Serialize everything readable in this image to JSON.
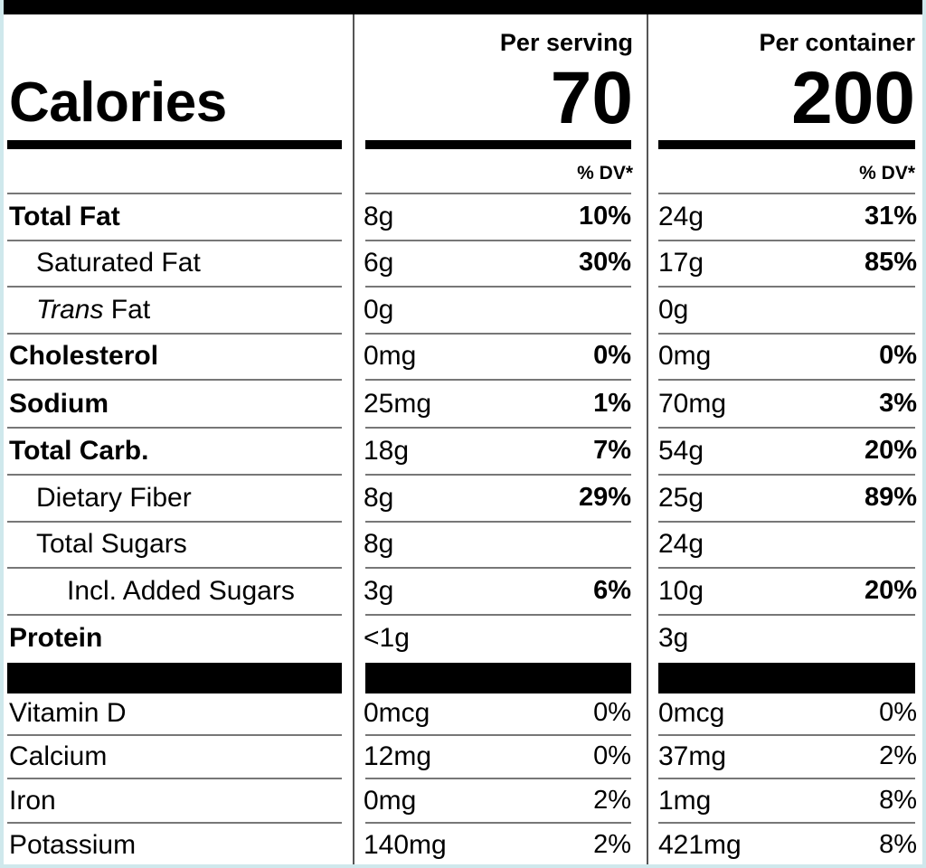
{
  "header": {
    "calories_label": "Calories",
    "per_serving_label": "Per serving",
    "per_container_label": "Per container",
    "per_serving_calories": "70",
    "per_container_calories": "200",
    "dv_label": "% DV*"
  },
  "nutrients": [
    {
      "name": "Total Fat",
      "serving_amount": "8g",
      "serving_dv": "10%",
      "container_amount": "24g",
      "container_dv": "31%"
    },
    {
      "name": "Saturated Fat",
      "serving_amount": "6g",
      "serving_dv": "30%",
      "container_amount": "17g",
      "container_dv": "85%"
    },
    {
      "name_italic": "Trans",
      "name_rest": " Fat",
      "serving_amount": "0g",
      "serving_dv": "",
      "container_amount": "0g",
      "container_dv": ""
    },
    {
      "name": "Cholesterol",
      "serving_amount": "0mg",
      "serving_dv": "0%",
      "container_amount": "0mg",
      "container_dv": "0%"
    },
    {
      "name": "Sodium",
      "serving_amount": "25mg",
      "serving_dv": "1%",
      "container_amount": "70mg",
      "container_dv": "3%"
    },
    {
      "name": "Total Carb.",
      "serving_amount": "18g",
      "serving_dv": "7%",
      "container_amount": "54g",
      "container_dv": "20%"
    },
    {
      "name": "Dietary Fiber",
      "serving_amount": "8g",
      "serving_dv": "29%",
      "container_amount": "25g",
      "container_dv": "89%"
    },
    {
      "name": "Total Sugars",
      "serving_amount": "8g",
      "serving_dv": "",
      "container_amount": "24g",
      "container_dv": ""
    },
    {
      "name": "Incl. Added Sugars",
      "serving_amount": "3g",
      "serving_dv": "6%",
      "container_amount": "10g",
      "container_dv": "20%"
    },
    {
      "name": "Protein",
      "serving_amount": "<1g",
      "serving_dv": "",
      "container_amount": "3g",
      "container_dv": ""
    }
  ],
  "vitamins": [
    {
      "name": "Vitamin D",
      "serving_amount": "0mcg",
      "serving_dv": "0%",
      "container_amount": "0mcg",
      "container_dv": "0%"
    },
    {
      "name": "Calcium",
      "serving_amount": "12mg",
      "serving_dv": "0%",
      "container_amount": "37mg",
      "container_dv": "2%"
    },
    {
      "name": "Iron",
      "serving_amount": "0mg",
      "serving_dv": "2%",
      "container_amount": "1mg",
      "container_dv": "8%"
    },
    {
      "name": "Potassium",
      "serving_amount": "140mg",
      "serving_dv": "2%",
      "container_amount": "421mg",
      "container_dv": "8%"
    }
  ]
}
